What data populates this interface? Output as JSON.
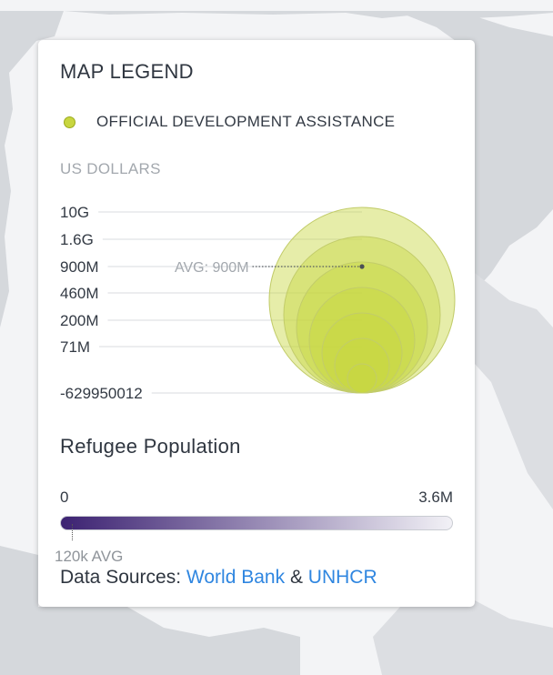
{
  "legend": {
    "title": "MAP LEGEND",
    "series": {
      "label": "OFFICIAL DEVELOPMENT ASSISTANCE",
      "color": "#c8d640"
    },
    "unit": "US DOLLARS",
    "size_scale": {
      "ticks": [
        "10G",
        "1.6G",
        "900M",
        "460M",
        "200M",
        "71M",
        "-629950012"
      ],
      "avg_label": "AVG: 900M",
      "bubble_color": "#c8d640"
    },
    "refugee": {
      "title": "Refugee Population",
      "min_label": "0",
      "max_label": "3.6M",
      "avg_label": "120k AVG",
      "gradient_from": "#3c2272",
      "gradient_to": "#f2f1f6"
    },
    "sources": {
      "prefix": "Data Sources:",
      "link1": "World Bank",
      "separator": "&",
      "link2": "UNHCR"
    }
  },
  "map": {
    "land_color": "#d5d8dc",
    "water_color": "#f3f4f6"
  }
}
